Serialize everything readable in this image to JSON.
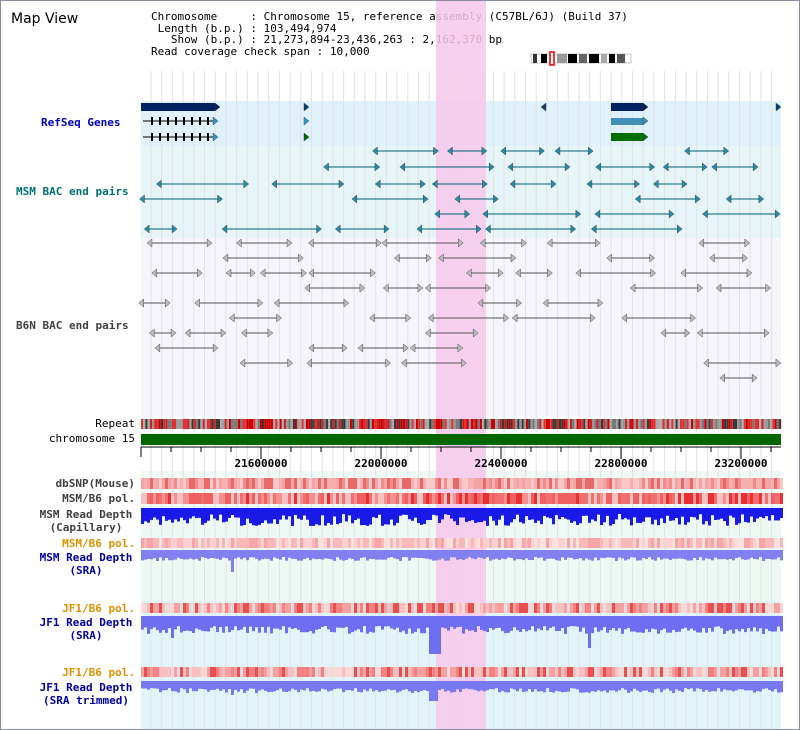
{
  "app": {
    "title": "Map View"
  },
  "info": {
    "chromosome_label": "Chromosome",
    "chromosome_value": "Chromosome 15, reference assembly (C57BL/6J) (Build 37)",
    "length_label": "Length (b.p.)",
    "length_value": "103,494,974",
    "show_label": "Show (b.p.)",
    "show_value": "21,273,894-23,436,263 : 2,162,370 bp",
    "coverage_label": "Read coverage check span",
    "coverage_value": "10,000"
  },
  "tracks": {
    "refseq": "RefSeq Genes",
    "msm_bac": "MSM BAC end pairs",
    "b6n_bac": "B6N BAC end pairs",
    "repeat": "Repeat",
    "chromosome": "chromosome 15",
    "dbsnp": "dbSNP(Mouse)",
    "msm_b6_pol_1": "MSM/B6 pol.",
    "msm_read_depth_cap_1": "MSM Read Depth",
    "msm_read_depth_cap_2": "(Capillary)",
    "msm_b6_pol_2": "MSM/B6 pol.",
    "msm_read_depth_sra_1": "MSM Read Depth",
    "msm_read_depth_sra_2": "(SRA)",
    "jf1_b6_pol_1": "JF1/B6 pol.",
    "jf1_read_depth_sra_1": "JF1 Read Depth",
    "jf1_read_depth_sra_2": "(SRA)",
    "jf1_b6_pol_2": "JF1/B6 pol.",
    "jf1_read_depth_trim_1": "JF1 Read Depth",
    "jf1_read_depth_trim_2": "(SRA trimmed)"
  },
  "axis": {
    "ticks": [
      "21600000",
      "22000000",
      "22400000",
      "22800000",
      "23200000"
    ]
  },
  "colors": {
    "refseq_label": "#0000c0",
    "msm_label": "#007070",
    "b6n_label": "#404040",
    "pol_label": "#e09000",
    "depth_label": "#0000a0",
    "highlight": "#f7c8ec",
    "chromosome_bar": "#006600"
  }
}
